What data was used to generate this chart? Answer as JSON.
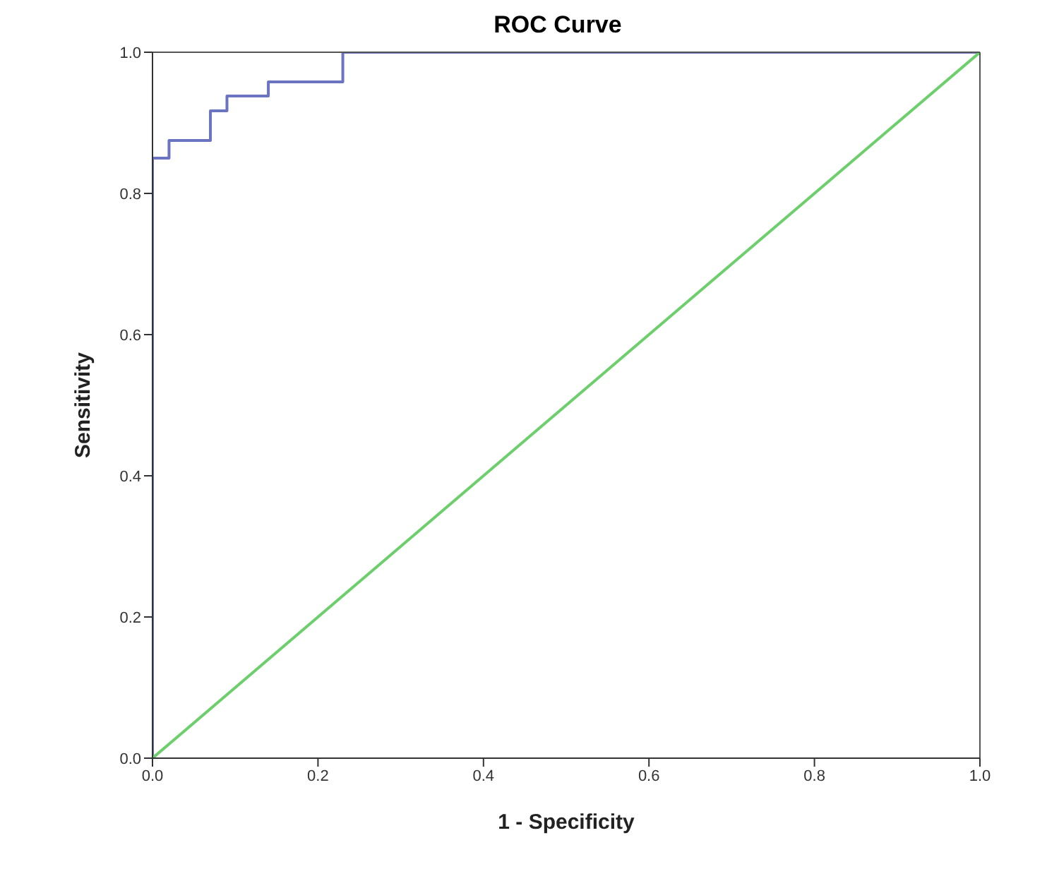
{
  "chart_data": {
    "type": "step",
    "title": "ROC Curve",
    "xlabel": "1 - Specificity",
    "ylabel": "Sensitivity",
    "xlim": [
      0,
      1
    ],
    "ylim": [
      0,
      1
    ],
    "xticks": [
      {
        "value": 0,
        "label": "0.0"
      },
      {
        "value": 0.2,
        "label": "0.2"
      },
      {
        "value": 0.4,
        "label": "0.4"
      },
      {
        "value": 0.6,
        "label": "0.6"
      },
      {
        "value": 0.8,
        "label": "0.8"
      },
      {
        "value": 1,
        "label": "1.0"
      }
    ],
    "yticks": [
      {
        "value": 0,
        "label": "0.0"
      },
      {
        "value": 0.2,
        "label": "0.2"
      },
      {
        "value": 0.4,
        "label": "0.4"
      },
      {
        "value": 0.6,
        "label": "0.6"
      },
      {
        "value": 0.8,
        "label": "0.8"
      },
      {
        "value": 1,
        "label": "1.0"
      }
    ],
    "marker": "none",
    "series": [
      {
        "color": "#6a74c0",
        "x": [
          0,
          0,
          0.02,
          0.07,
          0.09,
          0.14,
          0.23,
          1
        ],
        "values": [
          0,
          0.85,
          0.875,
          0.917,
          0.938,
          0.958,
          1,
          1
        ]
      },
      {
        "type": "line",
        "color": "#6ccf6c",
        "x": [
          0,
          1
        ],
        "values": [
          0,
          1
        ]
      }
    ]
  }
}
